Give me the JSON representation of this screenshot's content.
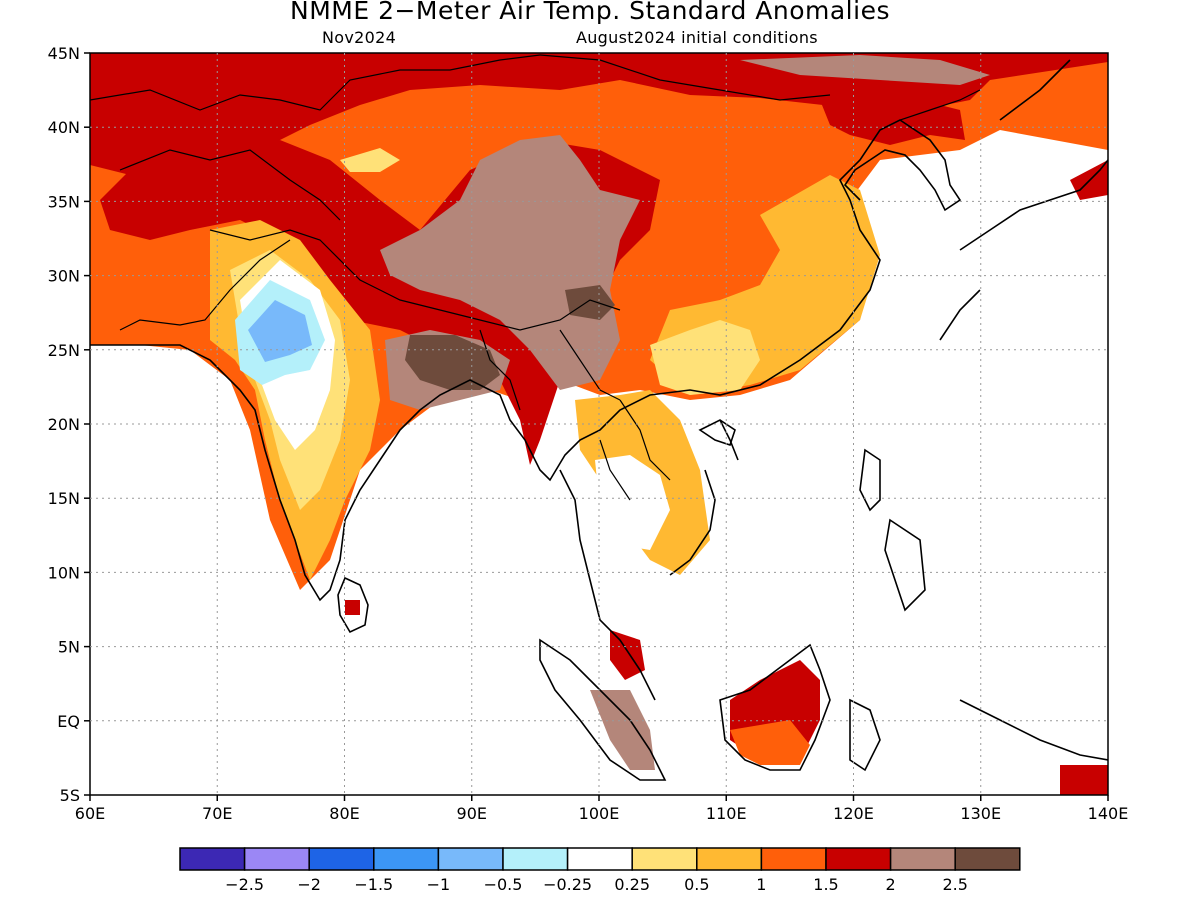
{
  "title": "NMME 2−Meter Air Temp. Standard Anomalies",
  "subtitle_left": "Nov2024",
  "subtitle_right": "August2024 initial conditions",
  "map": {
    "lon_range": [
      60,
      140
    ],
    "lat_range": [
      -5,
      45
    ],
    "lon_ticks": [
      "60E",
      "70E",
      "80E",
      "90E",
      "100E",
      "110E",
      "120E",
      "130E",
      "140E"
    ],
    "lat_ticks": [
      "45N",
      "40N",
      "35N",
      "30N",
      "25N",
      "20N",
      "15N",
      "10N",
      "5N",
      "EQ",
      "5S"
    ],
    "grid": true
  },
  "colorbar": {
    "colors": [
      "#3c28b4",
      "#9b87f5",
      "#1e64e6",
      "#3c96f5",
      "#78b9fa",
      "#b4f0fa",
      "#ffffff",
      "#ffe178",
      "#ffb932",
      "#ff5f0a",
      "#c80000",
      "#b4867a",
      "#6e4b3c"
    ],
    "labels": [
      "−2.5",
      "−2",
      "−1.5",
      "−1",
      "−0.5",
      "−0.25",
      "0.25",
      "0.5",
      "1",
      "1.5",
      "2",
      "2.5"
    ]
  }
}
